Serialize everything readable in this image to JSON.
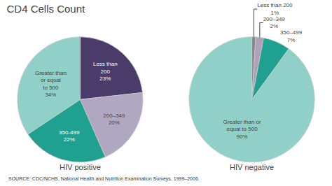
{
  "chart_data": {
    "type": "pie",
    "title": "CD4 Cells Count",
    "data_labels": true,
    "series": [
      {
        "name": "HIV positive",
        "categories": [
          "Less than\n200",
          "200–349",
          "350-499",
          "Greater than\nor equal\nto 500"
        ],
        "values": [
          23,
          20,
          22,
          34
        ],
        "value_labels": [
          "23%",
          "20%",
          "22%",
          "34%"
        ],
        "colors": [
          "#4a3b6b",
          "#b0a8c0",
          "#20a090",
          "#90d0c8"
        ]
      },
      {
        "name": "HIV negative",
        "categories": [
          "Less than 200",
          "200–349",
          "350–499",
          "Greater than or\nequal to 500"
        ],
        "values": [
          1,
          2,
          7,
          90
        ],
        "value_labels": [
          "1%",
          "2%",
          "7%",
          "90%"
        ],
        "colors": [
          "#888888",
          "#b0a0b8",
          "#20a090",
          "#90d0c8"
        ]
      }
    ],
    "annotations": [
      "SOURCE: CDC/NCHS, National Health and Nutrition Examination Surveys, 1999–2006."
    ]
  }
}
